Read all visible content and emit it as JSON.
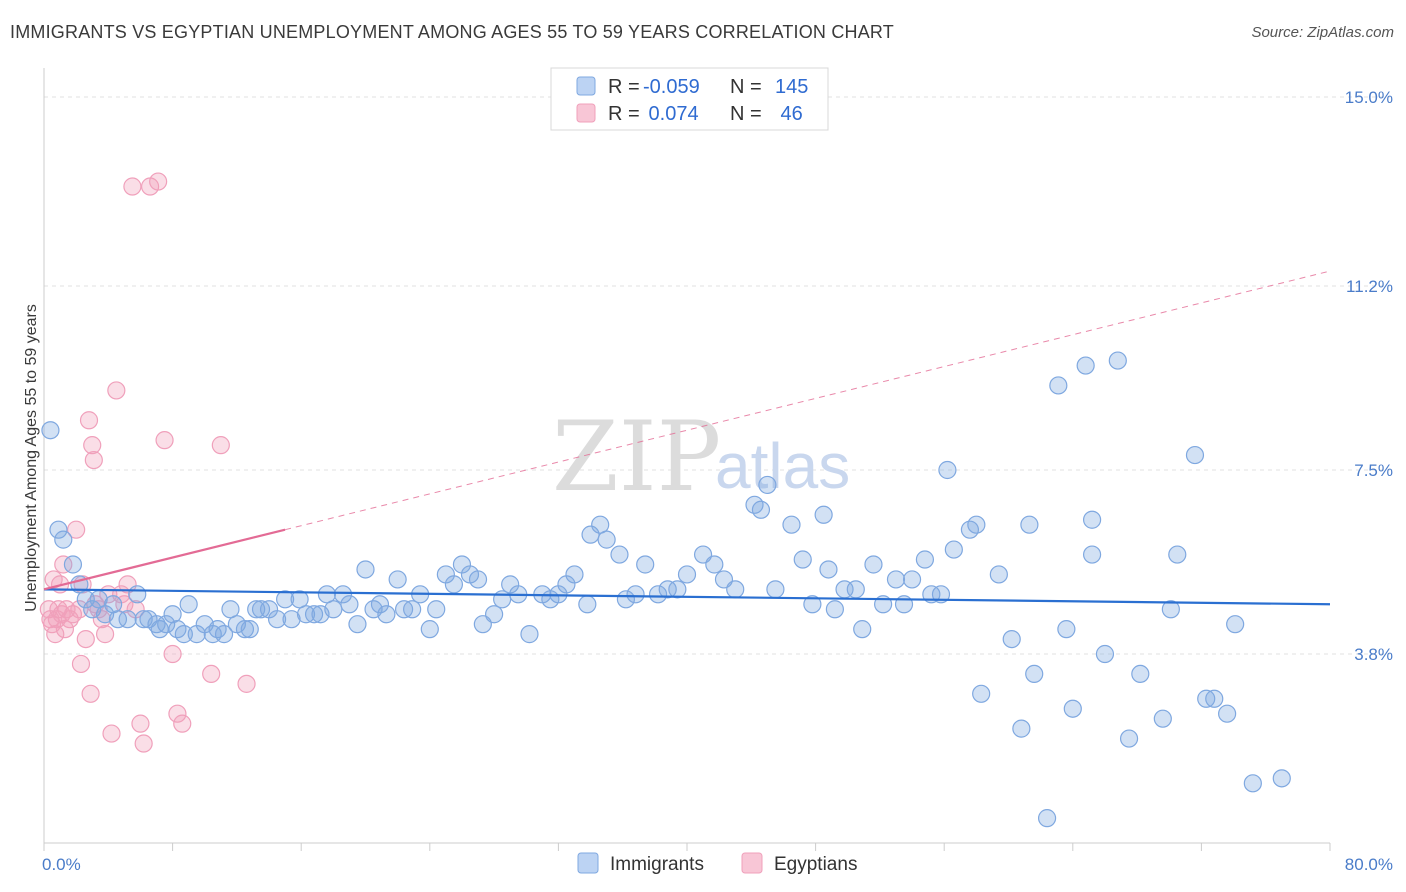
{
  "title": "IMMIGRANTS VS EGYPTIAN UNEMPLOYMENT AMONG AGES 55 TO 59 YEARS CORRELATION CHART",
  "source": "Source: ZipAtlas.com",
  "watermark": {
    "zip": "ZIP",
    "atlas": "atlas"
  },
  "colors": {
    "immigrants": "#7fa8e0",
    "immigrants_line": "#2a6fd1",
    "egyptians": "#f0a0bb",
    "egyptians_line": "#e36b95"
  },
  "legend": {
    "rows": [
      {
        "r_label": "R =",
        "r_value": "-0.059",
        "n_label": "N =",
        "n_value": "145"
      },
      {
        "r_label": "R =",
        "r_value": " 0.074",
        "n_label": "N =",
        "n_value": " 46"
      }
    ]
  },
  "chart_data": {
    "type": "scatter",
    "xlabel": "",
    "ylabel": "Unemployment Among Ages 55 to 59 years",
    "xlim": [
      0,
      80
    ],
    "ylim": [
      0,
      15.0
    ],
    "x_tick_labels": [
      "0.0%",
      "80.0%"
    ],
    "y_ticks": [
      3.8,
      7.5,
      11.2,
      15.0
    ],
    "y_tick_labels": [
      "3.8%",
      "7.5%",
      "11.2%",
      "15.0%"
    ],
    "grid": true,
    "legend_position": "top-center",
    "series": [
      {
        "name": "Immigrants",
        "trend": {
          "x": [
            0,
            80
          ],
          "y": [
            5.1,
            4.8
          ]
        },
        "points": [
          [
            0.4,
            8.3
          ],
          [
            0.9,
            6.3
          ],
          [
            1.2,
            6.1
          ],
          [
            1.8,
            5.6
          ],
          [
            2.2,
            5.2
          ],
          [
            2.6,
            4.9
          ],
          [
            3.0,
            4.7
          ],
          [
            3.4,
            4.9
          ],
          [
            3.8,
            4.6
          ],
          [
            4.3,
            4.8
          ],
          [
            4.6,
            4.5
          ],
          [
            5.2,
            4.5
          ],
          [
            5.8,
            5.0
          ],
          [
            6.2,
            4.5
          ],
          [
            6.5,
            4.5
          ],
          [
            7.0,
            4.4
          ],
          [
            7.2,
            4.3
          ],
          [
            7.6,
            4.4
          ],
          [
            8.0,
            4.6
          ],
          [
            8.3,
            4.3
          ],
          [
            8.7,
            4.2
          ],
          [
            9.0,
            4.8
          ],
          [
            9.5,
            4.2
          ],
          [
            10.0,
            4.4
          ],
          [
            10.5,
            4.2
          ],
          [
            10.8,
            4.3
          ],
          [
            11.2,
            4.2
          ],
          [
            11.6,
            4.7
          ],
          [
            12.0,
            4.4
          ],
          [
            12.5,
            4.3
          ],
          [
            12.8,
            4.3
          ],
          [
            13.2,
            4.7
          ],
          [
            13.5,
            4.7
          ],
          [
            14.0,
            4.7
          ],
          [
            14.5,
            4.5
          ],
          [
            15.0,
            4.9
          ],
          [
            15.4,
            4.5
          ],
          [
            15.9,
            4.9
          ],
          [
            16.3,
            4.6
          ],
          [
            16.8,
            4.6
          ],
          [
            17.2,
            4.6
          ],
          [
            17.6,
            5.0
          ],
          [
            18.0,
            4.7
          ],
          [
            18.6,
            5.0
          ],
          [
            19.0,
            4.8
          ],
          [
            19.5,
            4.4
          ],
          [
            20.0,
            5.5
          ],
          [
            20.5,
            4.7
          ],
          [
            20.9,
            4.8
          ],
          [
            21.3,
            4.6
          ],
          [
            22.0,
            5.3
          ],
          [
            22.4,
            4.7
          ],
          [
            22.9,
            4.7
          ],
          [
            23.4,
            5.0
          ],
          [
            24.0,
            4.3
          ],
          [
            24.4,
            4.7
          ],
          [
            25.0,
            5.4
          ],
          [
            25.5,
            5.2
          ],
          [
            26.0,
            5.6
          ],
          [
            26.5,
            5.4
          ],
          [
            27.0,
            5.3
          ],
          [
            27.3,
            4.4
          ],
          [
            28.0,
            4.6
          ],
          [
            28.5,
            4.9
          ],
          [
            29.0,
            5.2
          ],
          [
            29.5,
            5.0
          ],
          [
            30.2,
            4.2
          ],
          [
            31.0,
            5.0
          ],
          [
            31.5,
            4.9
          ],
          [
            32.0,
            5.0
          ],
          [
            32.5,
            5.2
          ],
          [
            33.0,
            5.4
          ],
          [
            33.8,
            4.8
          ],
          [
            34.0,
            6.2
          ],
          [
            34.6,
            6.4
          ],
          [
            35.0,
            6.1
          ],
          [
            35.8,
            5.8
          ],
          [
            36.2,
            4.9
          ],
          [
            36.8,
            5.0
          ],
          [
            37.4,
            5.6
          ],
          [
            38.2,
            5.0
          ],
          [
            38.8,
            5.1
          ],
          [
            39.4,
            5.1
          ],
          [
            40.0,
            5.4
          ],
          [
            41.0,
            5.8
          ],
          [
            41.7,
            5.6
          ],
          [
            42.3,
            5.3
          ],
          [
            43.0,
            5.1
          ],
          [
            44.2,
            6.8
          ],
          [
            44.6,
            6.7
          ],
          [
            45.0,
            7.2
          ],
          [
            45.5,
            5.1
          ],
          [
            46.5,
            6.4
          ],
          [
            47.2,
            5.7
          ],
          [
            47.8,
            4.8
          ],
          [
            48.5,
            6.6
          ],
          [
            48.8,
            5.5
          ],
          [
            49.2,
            4.7
          ],
          [
            49.8,
            5.1
          ],
          [
            50.5,
            5.1
          ],
          [
            50.9,
            4.3
          ],
          [
            51.6,
            5.6
          ],
          [
            52.2,
            4.8
          ],
          [
            53.0,
            5.3
          ],
          [
            53.5,
            4.8
          ],
          [
            54.0,
            5.3
          ],
          [
            54.8,
            5.7
          ],
          [
            55.2,
            5.0
          ],
          [
            55.8,
            5.0
          ],
          [
            56.2,
            7.5
          ],
          [
            56.6,
            5.9
          ],
          [
            57.6,
            6.3
          ],
          [
            58.0,
            6.4
          ],
          [
            58.3,
            3.0
          ],
          [
            59.4,
            5.4
          ],
          [
            60.2,
            4.1
          ],
          [
            60.8,
            2.3
          ],
          [
            61.3,
            6.4
          ],
          [
            61.6,
            3.4
          ],
          [
            62.4,
            0.5
          ],
          [
            63.1,
            9.2
          ],
          [
            63.6,
            4.3
          ],
          [
            64.0,
            2.7
          ],
          [
            64.8,
            9.6
          ],
          [
            65.2,
            6.5
          ],
          [
            66.0,
            3.8
          ],
          [
            67.5,
            2.1
          ],
          [
            68.2,
            3.4
          ],
          [
            69.6,
            2.5
          ],
          [
            70.1,
            4.7
          ],
          [
            70.5,
            5.8
          ],
          [
            71.6,
            7.8
          ],
          [
            72.3,
            2.9
          ],
          [
            72.8,
            2.9
          ],
          [
            73.6,
            2.6
          ],
          [
            74.1,
            4.4
          ],
          [
            75.2,
            1.2
          ],
          [
            77.0,
            1.3
          ],
          [
            65.2,
            5.8
          ],
          [
            66.8,
            9.7
          ]
        ]
      },
      {
        "name": "Egyptians",
        "trend": {
          "x": [
            0,
            15
          ],
          "y": [
            5.1,
            6.3
          ]
        },
        "trend_extension": {
          "x": [
            15,
            80
          ],
          "y": [
            6.3,
            11.5
          ]
        },
        "points": [
          [
            0.3,
            4.7
          ],
          [
            0.4,
            4.5
          ],
          [
            0.5,
            4.4
          ],
          [
            0.6,
            5.3
          ],
          [
            0.7,
            4.2
          ],
          [
            0.8,
            4.5
          ],
          [
            0.9,
            4.7
          ],
          [
            1.0,
            5.2
          ],
          [
            1.1,
            4.6
          ],
          [
            1.2,
            5.6
          ],
          [
            1.3,
            4.3
          ],
          [
            1.4,
            4.7
          ],
          [
            1.6,
            4.5
          ],
          [
            1.8,
            4.6
          ],
          [
            2.0,
            6.3
          ],
          [
            2.2,
            4.7
          ],
          [
            2.3,
            3.6
          ],
          [
            2.4,
            5.2
          ],
          [
            2.6,
            4.1
          ],
          [
            2.8,
            8.5
          ],
          [
            3.0,
            8.0
          ],
          [
            3.1,
            7.7
          ],
          [
            3.2,
            4.8
          ],
          [
            3.4,
            4.7
          ],
          [
            3.6,
            4.5
          ],
          [
            3.8,
            4.2
          ],
          [
            4.0,
            5.0
          ],
          [
            4.2,
            2.2
          ],
          [
            4.5,
            9.1
          ],
          [
            4.8,
            5.0
          ],
          [
            5.0,
            4.8
          ],
          [
            5.2,
            5.2
          ],
          [
            5.5,
            13.2
          ],
          [
            5.7,
            4.7
          ],
          [
            6.0,
            2.4
          ],
          [
            6.2,
            2.0
          ],
          [
            6.6,
            13.2
          ],
          [
            7.1,
            13.3
          ],
          [
            7.5,
            8.1
          ],
          [
            8.0,
            3.8
          ],
          [
            8.3,
            2.6
          ],
          [
            8.6,
            2.4
          ],
          [
            10.4,
            3.4
          ],
          [
            11.0,
            8.0
          ],
          [
            12.6,
            3.2
          ],
          [
            2.9,
            3.0
          ]
        ]
      }
    ]
  },
  "bottom_legend": [
    {
      "label": "Immigrants"
    },
    {
      "label": "Egyptians"
    }
  ]
}
